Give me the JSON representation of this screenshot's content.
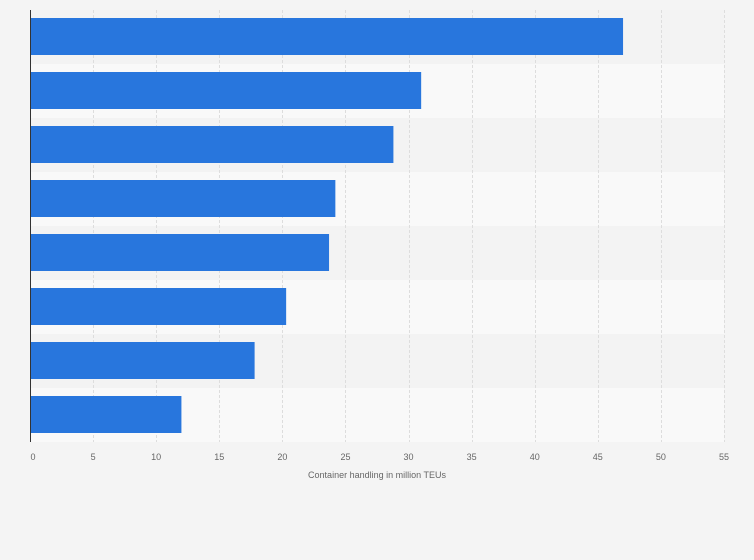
{
  "colors": {
    "bar": "#2876dd",
    "background": "#f4f4f4",
    "band_light": "#f9f9f9",
    "band_dark": "#f3f3f3",
    "grid": "#dddddd",
    "axis": "#333333",
    "text": "#666666"
  },
  "chart_data": {
    "type": "bar",
    "orientation": "horizontal",
    "title": "",
    "xlabel": "Container handling in million TEUs",
    "ylabel": "",
    "categories": [
      "",
      "",
      "",
      "",
      "",
      "",
      "",
      ""
    ],
    "values": [
      47,
      31,
      28.8,
      24.2,
      23.7,
      20.3,
      17.8,
      12
    ],
    "xlim": [
      0,
      55
    ],
    "xticks": [
      0,
      5,
      10,
      15,
      20,
      25,
      30,
      35,
      40,
      45,
      50,
      55
    ],
    "grid": true,
    "legend": "none"
  }
}
